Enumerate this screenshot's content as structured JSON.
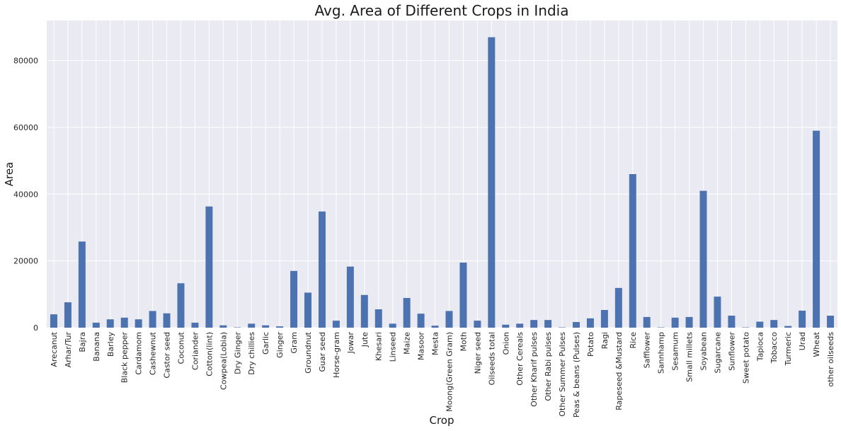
{
  "chart_data": {
    "type": "bar",
    "title": "Avg. Area of Different Crops in India",
    "xlabel": "Crop",
    "ylabel": "Area",
    "ylim": [
      0,
      92000
    ],
    "yticks": [
      0,
      20000,
      40000,
      60000,
      80000
    ],
    "grid": true,
    "bar_color": "#4c72b0",
    "background_color": "#eaeaf2",
    "categories": [
      "Arecanut",
      "Arhar/Tur",
      "Bajra",
      "Banana",
      "Barley",
      "Black pepper",
      "Cardamom",
      "Cashewnut",
      "Castor seed",
      "Coconut ",
      "Coriander",
      "Cotton(lint)",
      "Cowpea(Lobia)",
      "Dry Ginger",
      "Dry chillies",
      "Garlic",
      "Ginger",
      "Gram",
      "Groundnut",
      "Guar seed",
      "Horse-gram",
      "Jowar",
      "Jute",
      "Khesari",
      "Linseed",
      "Maize",
      "Masoor",
      "Mesta",
      "Moong(Green Gram)",
      "Moth",
      "Niger seed",
      "Oilseeds total",
      "Onion",
      "Other Cereals",
      "Other Kharif pulses",
      "Other Rabi pulses",
      "Other Summer Pulses",
      "Peas & beans (Pulses)",
      "Potato",
      "Ragi",
      "Rapeseed &Mustard",
      "Rice",
      "Safflower",
      "Sannhamp",
      "Sesamum",
      "Small millets",
      "Soyabean",
      "Sugarcane",
      "Sunflower",
      "Sweet potato",
      "Tapioca",
      "Tobacco",
      "Turmeric",
      "Urad",
      "Wheat",
      "other oilseeds"
    ],
    "values": [
      4000,
      7600,
      25800,
      1500,
      2500,
      3000,
      2500,
      5000,
      4300,
      13300,
      1500,
      36300,
      700,
      100,
      1200,
      700,
      400,
      17000,
      10500,
      34800,
      2100,
      18300,
      9800,
      5500,
      1200,
      8900,
      4200,
      600,
      5000,
      19500,
      2100,
      87000,
      900,
      1200,
      2300,
      2300,
      100,
      1700,
      2800,
      5300,
      11900,
      46000,
      3200,
      100,
      3000,
      3200,
      41000,
      9300,
      3600,
      100,
      1800,
      2300,
      500,
      5100,
      59000,
      3600
    ]
  }
}
